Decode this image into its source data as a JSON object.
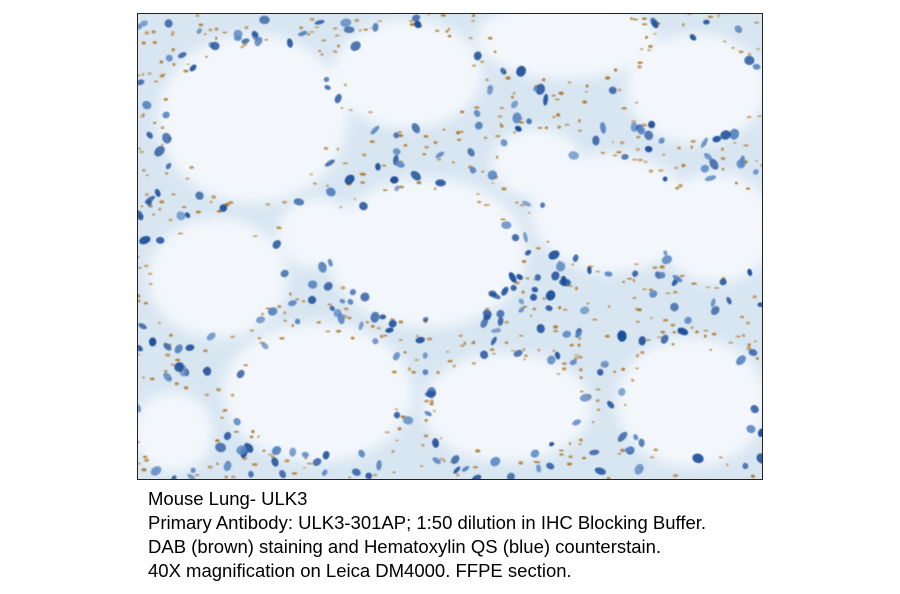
{
  "image": {
    "subject": "tissue-micrograph",
    "stain_colors": {
      "background": "#f3f7fb",
      "tissue": "#d8e6f2",
      "nucleus_dark": "#1f4f9a",
      "nucleus_light": "#5a86c0",
      "dab": "#b07a2e"
    }
  },
  "caption": {
    "line1": "Mouse Lung- ULK3",
    "line2": "Primary Antibody:  ULK3-301AP; 1:50 dilution in IHC Blocking Buffer.",
    "line3": "DAB (brown) staining and Hematoxylin QS (blue) counterstain.",
    "line4": "40X magnification on Leica DM4000. FFPE section."
  }
}
